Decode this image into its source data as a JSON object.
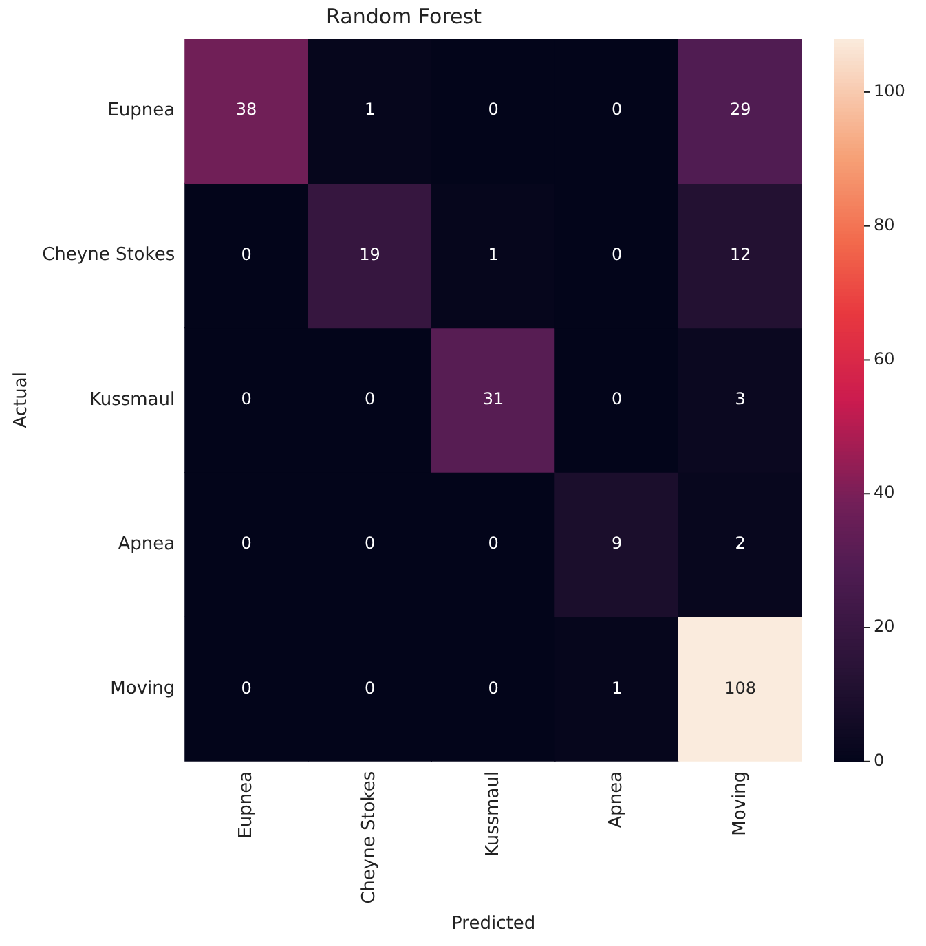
{
  "chart_data": {
    "type": "heatmap",
    "title": "Random Forest",
    "xlabel": "Predicted",
    "ylabel": "Actual",
    "categories": [
      "Eupnea",
      "Cheyne Stokes",
      "Kussmaul",
      "Apnea",
      "Moving"
    ],
    "y_categories": [
      "Eupnea",
      "Cheyne Stokes",
      "Kussmaul",
      "Apnea",
      "Moving"
    ],
    "cells": [
      [
        38,
        1,
        0,
        0,
        29
      ],
      [
        0,
        19,
        1,
        0,
        12
      ],
      [
        0,
        0,
        31,
        0,
        3
      ],
      [
        0,
        0,
        0,
        9,
        2
      ],
      [
        0,
        0,
        0,
        1,
        108
      ]
    ],
    "clim": [
      0,
      108
    ],
    "cticks": [
      0,
      20,
      40,
      60,
      80,
      100
    ],
    "data_labels": true
  }
}
